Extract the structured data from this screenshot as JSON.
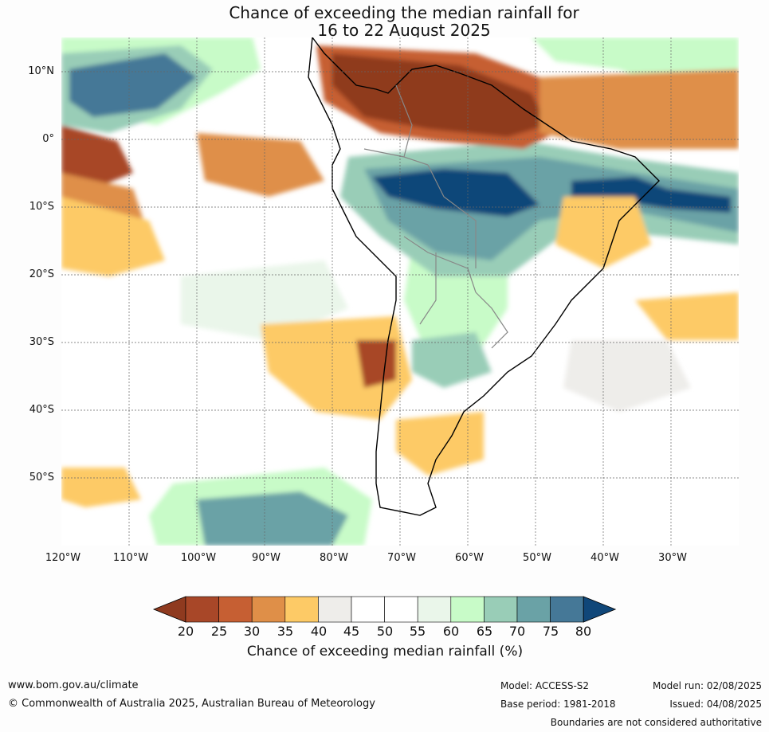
{
  "title": {
    "line1": "Chance of exceeding the median rainfall for",
    "line2": "16 to 22 August 2025"
  },
  "map": {
    "region": "South America and surrounding oceans",
    "lat_labels": [
      "10°N",
      "0°",
      "10°S",
      "20°S",
      "30°S",
      "40°S",
      "50°S"
    ],
    "lon_labels": [
      "120°W",
      "110°W",
      "100°W",
      "90°W",
      "80°W",
      "70°W",
      "60°W",
      "50°W",
      "40°W",
      "30°W"
    ],
    "gridlines": true
  },
  "colorbar": {
    "title": "Chance of exceeding median rainfall (%)",
    "ticks": [
      "20",
      "25",
      "30",
      "35",
      "40",
      "45",
      "50",
      "55",
      "60",
      "65",
      "70",
      "75",
      "80"
    ],
    "colors": [
      "#8f3a1f",
      "#a84728",
      "#c65f33",
      "#df8f48",
      "#fdca66",
      "#eeedea",
      "#ffffff",
      "#ffffff",
      "#eaf6ea",
      "#c8fbc8",
      "#99cdb7",
      "#6aa2a6",
      "#457897",
      "#104779"
    ]
  },
  "footer": {
    "url": "www.bom.gov.au/climate",
    "copyright": "© Commonwealth of Australia 2025, Australian Bureau of Meteorology",
    "model": "Model: ACCESS-S2",
    "base_period": "Base period: 1981-2018",
    "model_run": "Model run: 02/08/2025",
    "issued": "Issued: 04/08/2025",
    "boundaries": "Boundaries are not considered authoritative"
  }
}
